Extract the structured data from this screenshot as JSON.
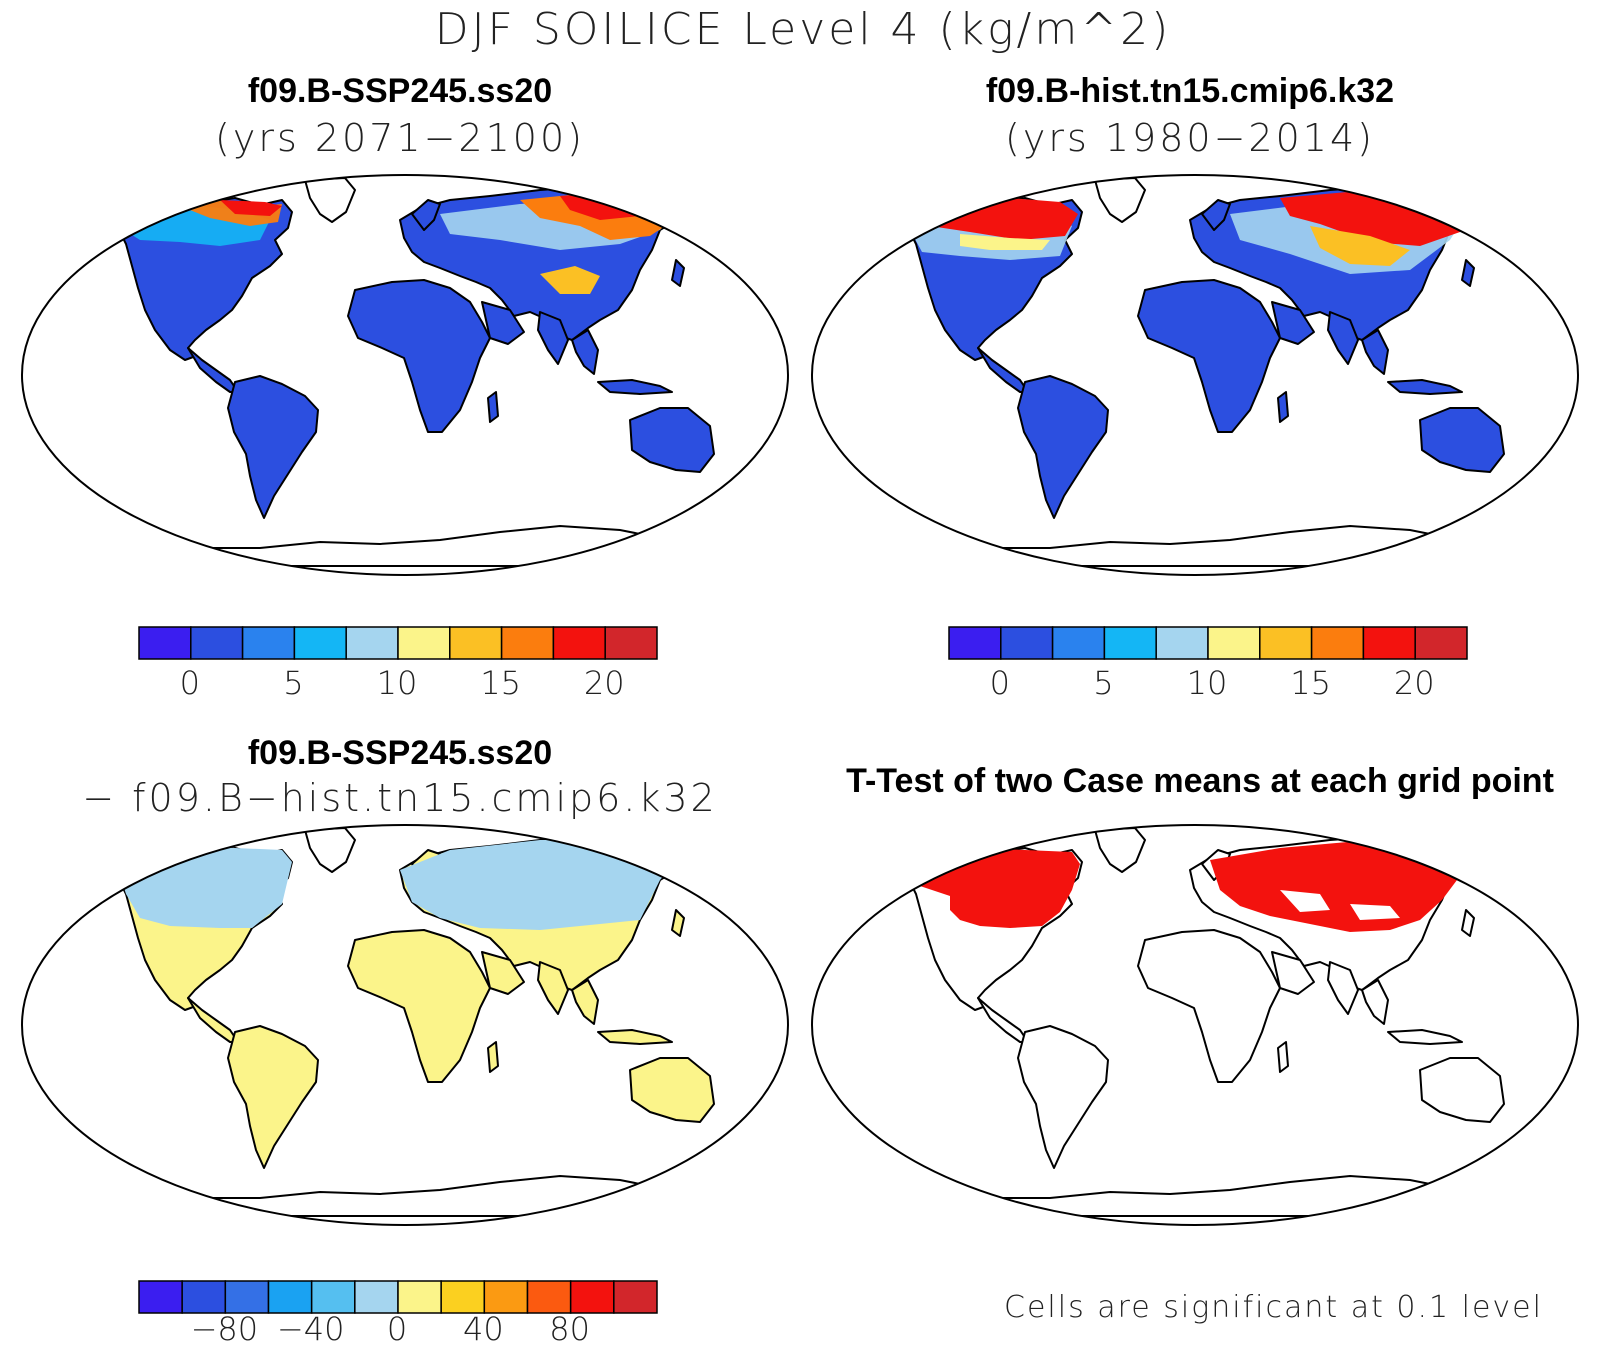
{
  "title": "DJF SOILICE Level 4 (kg/m^2)",
  "panels": [
    {
      "id": "case1",
      "title": "f09.B-SSP245.ss20",
      "subtitle": "(yrs 2071−2100)",
      "colorbar": {
        "colors": [
          "#3b1ef0",
          "#2c4fe0",
          "#2a82ee",
          "#14b6f5",
          "#a5d5ef",
          "#fbf48a",
          "#fbc024",
          "#fb7d0e",
          "#f3120e",
          "#d2262b"
        ],
        "tick_labels": [
          "0",
          "5",
          "10",
          "15",
          "20"
        ]
      }
    },
    {
      "id": "case2",
      "title": "f09.B-hist.tn15.cmip6.k32",
      "subtitle": "(yrs 1980−2014)",
      "colorbar": {
        "colors": [
          "#3b1ef0",
          "#2c4fe0",
          "#2a82ee",
          "#14b6f5",
          "#a5d5ef",
          "#fbf48a",
          "#fbc024",
          "#fb7d0e",
          "#f3120e",
          "#d2262b"
        ],
        "tick_labels": [
          "0",
          "5",
          "10",
          "15",
          "20"
        ]
      }
    },
    {
      "id": "diff",
      "title": "f09.B-SSP245.ss20",
      "subtitle": "− f09.B−hist.tn15.cmip6.k32",
      "colorbar": {
        "colors": [
          "#3b1ef0",
          "#2c4fe0",
          "#3470e6",
          "#1aa2f2",
          "#55bff0",
          "#a5d5ef",
          "#fbf48a",
          "#fbd020",
          "#fb9a12",
          "#fb5a10",
          "#f3120e",
          "#d2262b"
        ],
        "tick_labels": [
          "−80",
          "−40",
          "0",
          "40",
          "80"
        ]
      }
    },
    {
      "id": "ttest",
      "title": "T-Test of two Case means at each grid point",
      "note": "Cells are significant at 0.1 level"
    }
  ],
  "colors": {
    "ocean": "#ffffff",
    "land_low": "#2c4fe0",
    "diff_land": "#fbf48a",
    "diff_north": "#a5d5ef",
    "significant": "#f3120e",
    "outline": "#000000"
  }
}
